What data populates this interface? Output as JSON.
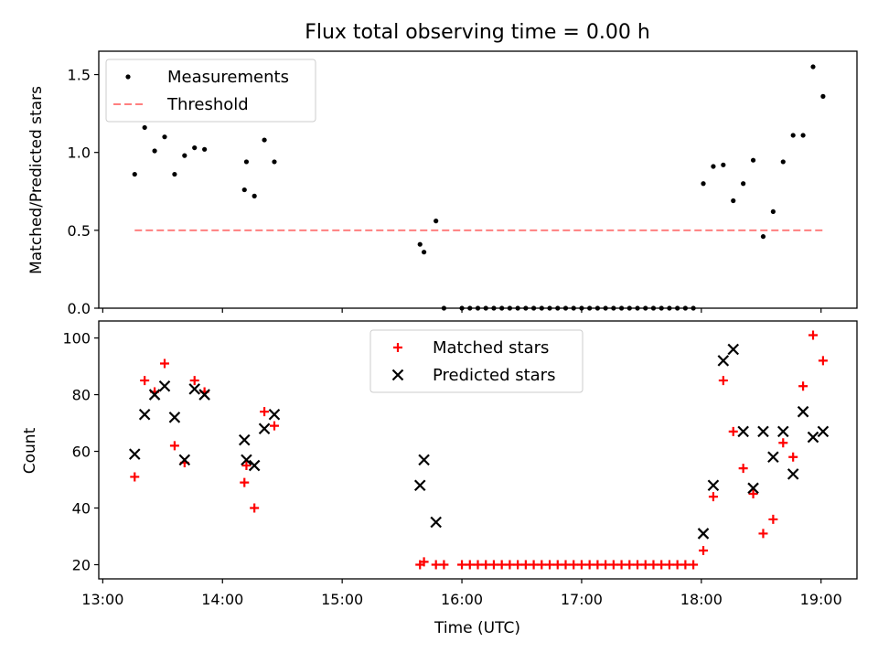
{
  "chart_data": [
    {
      "type": "scatter",
      "title": "Flux total observing time = 0.00 h",
      "xlabel": "",
      "ylabel": "Matched/Predicted stars",
      "xlim": [
        "12:58",
        "19:18"
      ],
      "ylim": [
        0,
        1.65
      ],
      "yticks": [
        "0.0",
        "0.5",
        "1.0",
        "1.5"
      ],
      "grid": false,
      "legend": "top-left",
      "series": [
        {
          "name": "Measurements",
          "style": "dot",
          "color": "#000000",
          "points": [
            [
              "13:16",
              0.86
            ],
            [
              "13:21",
              1.16
            ],
            [
              "13:26",
              1.01
            ],
            [
              "13:31",
              1.1
            ],
            [
              "13:36",
              0.86
            ],
            [
              "13:41",
              0.98
            ],
            [
              "13:46",
              1.03
            ],
            [
              "13:51",
              1.02
            ],
            [
              "14:11",
              0.76
            ],
            [
              "14:12",
              0.94
            ],
            [
              "14:16",
              0.72
            ],
            [
              "14:21",
              1.08
            ],
            [
              "14:26",
              0.94
            ],
            [
              "15:39",
              0.41
            ],
            [
              "15:41",
              0.36
            ],
            [
              "15:47",
              0.56
            ],
            [
              "15:51",
              0.0
            ],
            [
              "16:00",
              0.0
            ],
            [
              "16:04",
              0.0
            ],
            [
              "16:08",
              0.0
            ],
            [
              "16:12",
              0.0
            ],
            [
              "16:16",
              0.0
            ],
            [
              "16:20",
              0.0
            ],
            [
              "16:24",
              0.0
            ],
            [
              "16:28",
              0.0
            ],
            [
              "16:32",
              0.0
            ],
            [
              "16:36",
              0.0
            ],
            [
              "16:40",
              0.0
            ],
            [
              "16:44",
              0.0
            ],
            [
              "16:48",
              0.0
            ],
            [
              "16:52",
              0.0
            ],
            [
              "16:56",
              0.0
            ],
            [
              "17:00",
              0.0
            ],
            [
              "17:04",
              0.0
            ],
            [
              "17:08",
              0.0
            ],
            [
              "17:12",
              0.0
            ],
            [
              "17:16",
              0.0
            ],
            [
              "17:20",
              0.0
            ],
            [
              "17:24",
              0.0
            ],
            [
              "17:28",
              0.0
            ],
            [
              "17:32",
              0.0
            ],
            [
              "17:36",
              0.0
            ],
            [
              "17:40",
              0.0
            ],
            [
              "17:44",
              0.0
            ],
            [
              "17:48",
              0.0
            ],
            [
              "17:52",
              0.0
            ],
            [
              "17:56",
              0.0
            ],
            [
              "18:01",
              0.8
            ],
            [
              "18:06",
              0.91
            ],
            [
              "18:11",
              0.92
            ],
            [
              "18:16",
              0.69
            ],
            [
              "18:21",
              0.8
            ],
            [
              "18:26",
              0.95
            ],
            [
              "18:31",
              0.46
            ],
            [
              "18:36",
              0.62
            ],
            [
              "18:41",
              0.94
            ],
            [
              "18:46",
              1.11
            ],
            [
              "18:51",
              1.11
            ],
            [
              "18:56",
              1.55
            ],
            [
              "19:01",
              1.36
            ]
          ]
        },
        {
          "name": "Threshold",
          "style": "dashed-line",
          "color": "#ff7f7f",
          "points": [
            [
              "13:16",
              0.5
            ],
            [
              "19:01",
              0.5
            ]
          ]
        }
      ]
    },
    {
      "type": "scatter",
      "title": "",
      "xlabel": "Time (UTC)",
      "ylabel": "Count",
      "xlim": [
        "12:58",
        "19:18"
      ],
      "ylim": [
        15,
        106
      ],
      "xticks": [
        "13:00",
        "14:00",
        "15:00",
        "16:00",
        "17:00",
        "18:00",
        "19:00"
      ],
      "yticks": [
        "20",
        "40",
        "60",
        "80",
        "100"
      ],
      "grid": false,
      "legend": "top-center",
      "series": [
        {
          "name": "Matched stars",
          "marker": "+",
          "color": "#ff0000",
          "points": [
            [
              "13:16",
              51
            ],
            [
              "13:21",
              85
            ],
            [
              "13:26",
              81
            ],
            [
              "13:31",
              91
            ],
            [
              "13:36",
              62
            ],
            [
              "13:41",
              56
            ],
            [
              "13:46",
              85
            ],
            [
              "13:51",
              81
            ],
            [
              "14:11",
              49
            ],
            [
              "14:12",
              55
            ],
            [
              "14:16",
              40
            ],
            [
              "14:21",
              74
            ],
            [
              "14:26",
              69
            ],
            [
              "15:39",
              20
            ],
            [
              "15:41",
              21
            ],
            [
              "15:47",
              20
            ],
            [
              "15:51",
              20
            ],
            [
              "16:00",
              20
            ],
            [
              "16:04",
              20
            ],
            [
              "16:08",
              20
            ],
            [
              "16:12",
              20
            ],
            [
              "16:16",
              20
            ],
            [
              "16:20",
              20
            ],
            [
              "16:24",
              20
            ],
            [
              "16:28",
              20
            ],
            [
              "16:32",
              20
            ],
            [
              "16:36",
              20
            ],
            [
              "16:40",
              20
            ],
            [
              "16:44",
              20
            ],
            [
              "16:48",
              20
            ],
            [
              "16:52",
              20
            ],
            [
              "16:56",
              20
            ],
            [
              "17:00",
              20
            ],
            [
              "17:04",
              20
            ],
            [
              "17:08",
              20
            ],
            [
              "17:12",
              20
            ],
            [
              "17:16",
              20
            ],
            [
              "17:20",
              20
            ],
            [
              "17:24",
              20
            ],
            [
              "17:28",
              20
            ],
            [
              "17:32",
              20
            ],
            [
              "17:36",
              20
            ],
            [
              "17:40",
              20
            ],
            [
              "17:44",
              20
            ],
            [
              "17:48",
              20
            ],
            [
              "17:52",
              20
            ],
            [
              "17:56",
              20
            ],
            [
              "18:01",
              25
            ],
            [
              "18:06",
              44
            ],
            [
              "18:11",
              85
            ],
            [
              "18:16",
              67
            ],
            [
              "18:21",
              54
            ],
            [
              "18:26",
              45
            ],
            [
              "18:31",
              31
            ],
            [
              "18:36",
              36
            ],
            [
              "18:41",
              63
            ],
            [
              "18:46",
              58
            ],
            [
              "18:51",
              83
            ],
            [
              "18:56",
              101
            ],
            [
              "19:01",
              92
            ]
          ]
        },
        {
          "name": "Predicted stars",
          "marker": "x",
          "color": "#000000",
          "points": [
            [
              "13:16",
              59
            ],
            [
              "13:21",
              73
            ],
            [
              "13:26",
              80
            ],
            [
              "13:31",
              83
            ],
            [
              "13:36",
              72
            ],
            [
              "13:41",
              57
            ],
            [
              "13:46",
              82
            ],
            [
              "13:51",
              80
            ],
            [
              "14:11",
              64
            ],
            [
              "14:12",
              57
            ],
            [
              "14:16",
              55
            ],
            [
              "14:21",
              68
            ],
            [
              "14:26",
              73
            ],
            [
              "15:39",
              48
            ],
            [
              "15:41",
              57
            ],
            [
              "15:47",
              35
            ],
            [
              "18:01",
              31
            ],
            [
              "18:06",
              48
            ],
            [
              "18:11",
              92
            ],
            [
              "18:16",
              96
            ],
            [
              "18:21",
              67
            ],
            [
              "18:26",
              47
            ],
            [
              "18:31",
              67
            ],
            [
              "18:36",
              58
            ],
            [
              "18:41",
              67
            ],
            [
              "18:46",
              52
            ],
            [
              "18:51",
              74
            ],
            [
              "18:56",
              65
            ],
            [
              "19:01",
              67
            ]
          ]
        }
      ]
    }
  ]
}
